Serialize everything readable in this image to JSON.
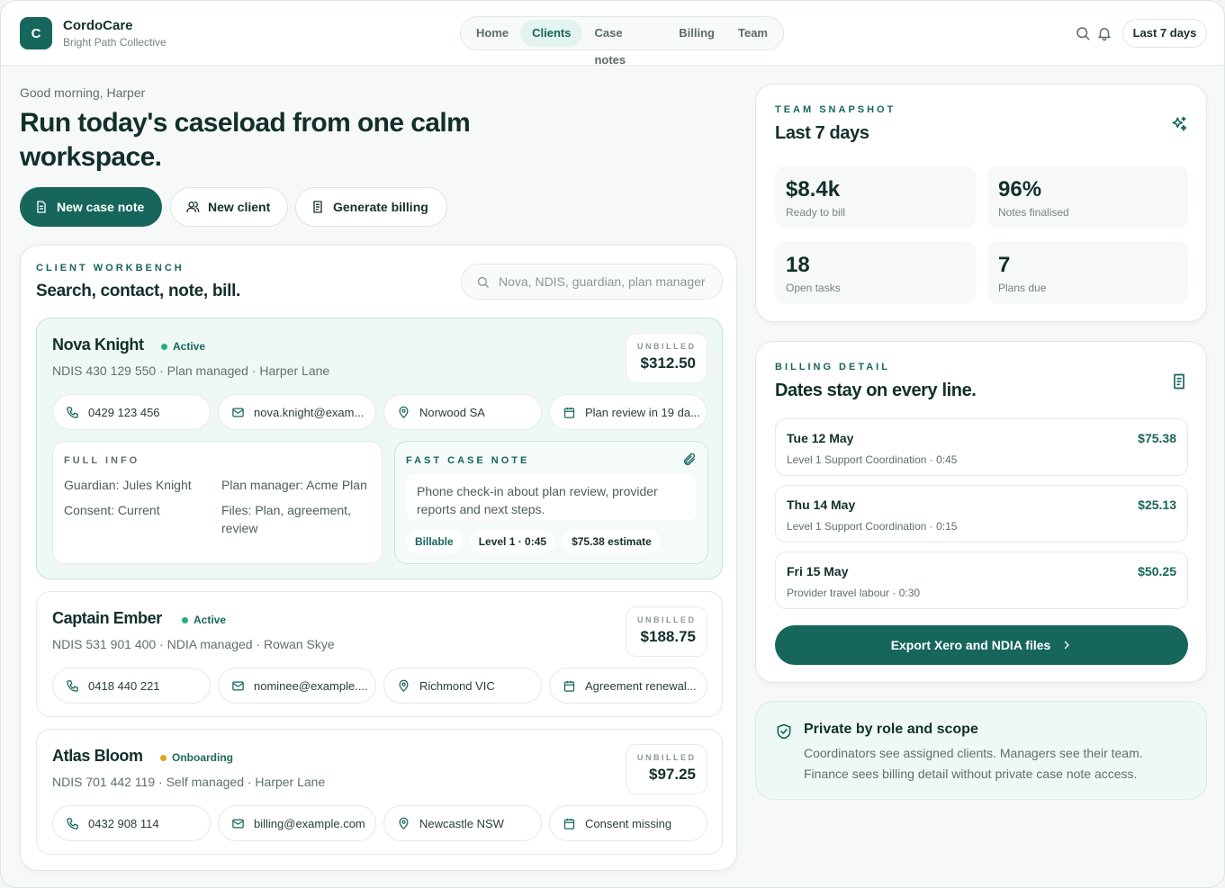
{
  "app": {
    "logo_letter": "C",
    "name": "CordoCare",
    "org": "Bright Path Collective"
  },
  "nav": {
    "items": [
      {
        "label": "Home",
        "active": false
      },
      {
        "label": "Clients",
        "active": true
      },
      {
        "label": "Case notes",
        "active": false
      },
      {
        "label": "Billing",
        "active": false
      },
      {
        "label": "Team",
        "active": false
      }
    ],
    "range_label": "Last 7 days"
  },
  "hero": {
    "greeting": "Good morning, Harper",
    "title": "Run today's caseload from one calm workspace.",
    "actions": {
      "new_case_note": "New case note",
      "new_client": "New client",
      "generate_billing": "Generate billing"
    }
  },
  "workbench": {
    "eyebrow": "CLIENT WORKBENCH",
    "title": "Search, contact, note, bill.",
    "search_placeholder": "Nova, NDIS, guardian, plan manager",
    "unbilled_label": "UNBILLED",
    "clients": [
      {
        "name": "Nova Knight",
        "status": "Active",
        "meta": "NDIS 430 129 550 · Plan managed · Harper Lane",
        "unbilled": "$312.50",
        "phone": "0429 123 456",
        "email": "nova.knight@exam...",
        "location": "Norwood SA",
        "event": "Plan review in 19 da..."
      },
      {
        "name": "Captain Ember",
        "status": "Active",
        "meta": "NDIS 531 901 400 · NDIA managed · Rowan Skye",
        "unbilled": "$188.75",
        "phone": "0418 440 221",
        "email": "nominee@example....",
        "location": "Richmond VIC",
        "event": "Agreement renewal..."
      },
      {
        "name": "Atlas Bloom",
        "status": "Onboarding",
        "meta": "NDIS 701 442 119 · Self managed · Harper Lane",
        "unbilled": "$97.25",
        "phone": "0432 908 114",
        "email": "billing@example.com",
        "location": "Newcastle NSW",
        "event": "Consent missing"
      }
    ],
    "full_info": {
      "eyebrow": "FULL INFO",
      "guardian": "Guardian: Jules Knight",
      "plan_manager": "Plan manager: Acme Plan",
      "consent": "Consent: Current",
      "files": "Files: Plan, agreement, review"
    },
    "fast_note": {
      "eyebrow": "FAST CASE NOTE",
      "text": "Phone check-in about plan review, provider reports and next steps.",
      "tag_billable": "Billable",
      "tag_level": "Level 1 · 0:45",
      "tag_estimate": "$75.38 estimate"
    }
  },
  "snapshot": {
    "eyebrow": "TEAM SNAPSHOT",
    "title": "Last 7 days",
    "stats": [
      {
        "value": "$8.4k",
        "label": "Ready to bill"
      },
      {
        "value": "96%",
        "label": "Notes finalised"
      },
      {
        "value": "18",
        "label": "Open tasks"
      },
      {
        "value": "7",
        "label": "Plans due"
      }
    ]
  },
  "billing": {
    "eyebrow": "BILLING DETAIL",
    "title": "Dates stay on every line.",
    "lines": [
      {
        "date": "Tue 12 May",
        "desc": "Level 1 Support Coordination · 0:45",
        "amount": "$75.38"
      },
      {
        "date": "Thu 14 May",
        "desc": "Level 1 Support Coordination · 0:15",
        "amount": "$25.13"
      },
      {
        "date": "Fri 15 May",
        "desc": "Provider travel labour · 0:30",
        "amount": "$50.25"
      }
    ],
    "export_label": "Export Xero and NDIA files"
  },
  "privacy": {
    "title": "Private by role and scope",
    "body": "Coordinators see assigned clients. Managers see their team. Finance sees billing detail without private case note access."
  },
  "colors": {
    "brand": "#17665c",
    "active_status": "#22b07d",
    "onboarding_status": "#e0a21a",
    "status_text_active": "#17665c",
    "status_text_onboarding": "#1f6a5d"
  },
  "icons": {
    "search": "search-icon",
    "bell": "bell-icon",
    "document": "document-icon",
    "user": "user-icon",
    "receipt": "receipt-icon",
    "phone": "phone-icon",
    "mail": "mail-icon",
    "pin": "map-pin-icon",
    "calendar": "calendar-icon",
    "paperclip": "paperclip-icon",
    "sparkles": "sparkles-icon",
    "shield": "shield-check-icon",
    "chevron": "chevron-right-icon"
  }
}
